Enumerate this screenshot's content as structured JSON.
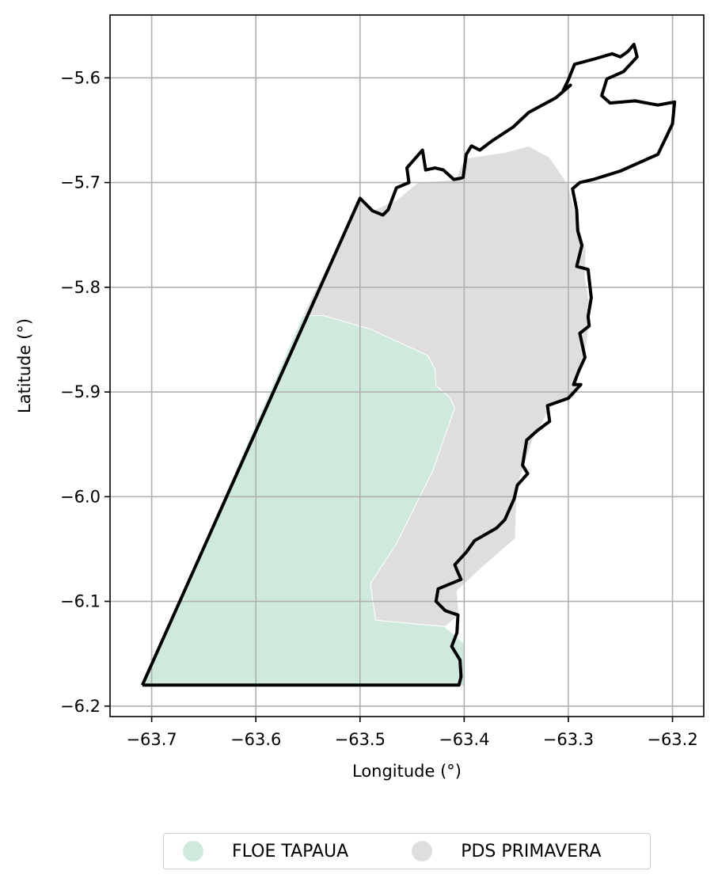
{
  "chart_data": {
    "type": "map",
    "xlabel": "Longitude (°)",
    "ylabel": "Latitude (°)",
    "xlim": [
      -63.74,
      -63.17
    ],
    "ylim": [
      -6.21,
      -5.54
    ],
    "grid": true,
    "x_ticks": [
      -63.7,
      -63.6,
      -63.5,
      -63.4,
      -63.3,
      -63.2
    ],
    "y_ticks": [
      -5.6,
      -5.7,
      -5.8,
      -5.9,
      -6.0,
      -6.1,
      -6.2
    ],
    "x_tick_labels": [
      "−63.7",
      "−63.6",
      "−63.5",
      "−63.4",
      "−63.3",
      "−63.2"
    ],
    "y_tick_labels": [
      "−5.6",
      "−5.7",
      "−5.8",
      "−5.9",
      "−6.0",
      "−6.1",
      "−6.2"
    ],
    "legend_position": "bottom-center",
    "series": [
      {
        "name": "FLOE TAPAUA",
        "color": "#cfeadd",
        "polygon": [
          [
            -63.709,
            -6.18
          ],
          [
            -63.555,
            -5.827
          ],
          [
            -63.535,
            -5.827
          ],
          [
            -63.49,
            -5.84
          ],
          [
            -63.435,
            -5.865
          ],
          [
            -63.428,
            -5.878
          ],
          [
            -63.427,
            -5.894
          ],
          [
            -63.414,
            -5.905
          ],
          [
            -63.409,
            -5.915
          ],
          [
            -63.43,
            -5.975
          ],
          [
            -63.465,
            -6.045
          ],
          [
            -63.49,
            -6.083
          ],
          [
            -63.485,
            -6.118
          ],
          [
            -63.42,
            -6.123
          ],
          [
            -63.4,
            -6.14
          ],
          [
            -63.4,
            -6.181
          ]
        ]
      },
      {
        "name": "PDS PRIMAVERA",
        "color": "#dedede",
        "polygon": [
          [
            -63.555,
            -5.827
          ],
          [
            -63.5,
            -5.717
          ],
          [
            -63.488,
            -5.727
          ],
          [
            -63.473,
            -5.72
          ],
          [
            -63.465,
            -5.717
          ],
          [
            -63.445,
            -5.7
          ],
          [
            -63.408,
            -5.697
          ],
          [
            -63.4,
            -5.677
          ],
          [
            -63.36,
            -5.671
          ],
          [
            -63.338,
            -5.665
          ],
          [
            -63.318,
            -5.676
          ],
          [
            -63.305,
            -5.695
          ],
          [
            -63.3,
            -5.702
          ],
          [
            -63.293,
            -5.73
          ],
          [
            -63.283,
            -5.765
          ],
          [
            -63.284,
            -5.79
          ],
          [
            -63.279,
            -5.82
          ],
          [
            -63.282,
            -5.852
          ],
          [
            -63.29,
            -5.885
          ],
          [
            -63.294,
            -5.905
          ],
          [
            -63.316,
            -5.913
          ],
          [
            -63.334,
            -5.945
          ],
          [
            -63.349,
            -5.99
          ],
          [
            -63.351,
            -6.04
          ],
          [
            -63.38,
            -6.065
          ],
          [
            -63.407,
            -6.09
          ],
          [
            -63.405,
            -6.113
          ],
          [
            -63.418,
            -6.124
          ],
          [
            -63.485,
            -6.118
          ],
          [
            -63.49,
            -6.083
          ],
          [
            -63.465,
            -6.045
          ],
          [
            -63.43,
            -5.975
          ],
          [
            -63.409,
            -5.915
          ],
          [
            -63.414,
            -5.905
          ],
          [
            -63.427,
            -5.894
          ],
          [
            -63.428,
            -5.878
          ],
          [
            -63.435,
            -5.865
          ],
          [
            -63.49,
            -5.84
          ],
          [
            -63.535,
            -5.827
          ]
        ]
      }
    ],
    "boundary": [
      [
        -63.709,
        -6.18
      ],
      [
        -63.5,
        -5.715
      ],
      [
        -63.488,
        -5.727
      ],
      [
        -63.478,
        -5.731
      ],
      [
        -63.473,
        -5.726
      ],
      [
        -63.465,
        -5.705
      ],
      [
        -63.453,
        -5.7
      ],
      [
        -63.455,
        -5.686
      ],
      [
        -63.44,
        -5.669
      ],
      [
        -63.437,
        -5.688
      ],
      [
        -63.428,
        -5.686
      ],
      [
        -63.42,
        -5.688
      ],
      [
        -63.41,
        -5.697
      ],
      [
        -63.404,
        -5.696
      ],
      [
        -63.401,
        -5.695
      ],
      [
        -63.398,
        -5.673
      ],
      [
        -63.393,
        -5.665
      ],
      [
        -63.385,
        -5.669
      ],
      [
        -63.373,
        -5.66
      ],
      [
        -63.353,
        -5.647
      ],
      [
        -63.338,
        -5.633
      ],
      [
        -63.312,
        -5.619
      ],
      [
        -63.298,
        -5.607
      ],
      [
        -63.305,
        -5.612
      ],
      [
        -63.3,
        -5.602
      ],
      [
        -63.294,
        -5.587
      ],
      [
        -63.275,
        -5.582
      ],
      [
        -63.258,
        -5.577
      ],
      [
        -63.25,
        -5.58
      ],
      [
        -63.243,
        -5.575
      ],
      [
        -63.237,
        -5.568
      ],
      [
        -63.234,
        -5.58
      ],
      [
        -63.247,
        -5.594
      ],
      [
        -63.263,
        -5.601
      ],
      [
        -63.268,
        -5.617
      ],
      [
        -63.26,
        -5.624
      ],
      [
        -63.236,
        -5.622
      ],
      [
        -63.214,
        -5.626
      ],
      [
        -63.198,
        -5.623
      ],
      [
        -63.2,
        -5.644
      ],
      [
        -63.214,
        -5.673
      ],
      [
        -63.25,
        -5.689
      ],
      [
        -63.276,
        -5.697
      ],
      [
        -63.289,
        -5.7
      ],
      [
        -63.296,
        -5.706
      ],
      [
        -63.292,
        -5.726
      ],
      [
        -63.291,
        -5.746
      ],
      [
        -63.287,
        -5.76
      ],
      [
        -63.292,
        -5.78
      ],
      [
        -63.281,
        -5.783
      ],
      [
        -63.278,
        -5.81
      ],
      [
        -63.281,
        -5.828
      ],
      [
        -63.28,
        -5.837
      ],
      [
        -63.289,
        -5.844
      ],
      [
        -63.284,
        -5.867
      ],
      [
        -63.29,
        -5.88
      ],
      [
        -63.295,
        -5.893
      ],
      [
        -63.288,
        -5.893
      ],
      [
        -63.3,
        -5.906
      ],
      [
        -63.32,
        -5.913
      ],
      [
        -63.318,
        -5.928
      ],
      [
        -63.33,
        -5.937
      ],
      [
        -63.34,
        -5.946
      ],
      [
        -63.344,
        -5.97
      ],
      [
        -63.339,
        -5.978
      ],
      [
        -63.349,
        -5.989
      ],
      [
        -63.352,
        -6.002
      ],
      [
        -63.361,
        -6.022
      ],
      [
        -63.369,
        -6.03
      ],
      [
        -63.39,
        -6.042
      ],
      [
        -63.398,
        -6.053
      ],
      [
        -63.409,
        -6.065
      ],
      [
        -63.407,
        -6.07
      ],
      [
        -63.403,
        -6.079
      ],
      [
        -63.425,
        -6.088
      ],
      [
        -63.427,
        -6.1
      ],
      [
        -63.418,
        -6.109
      ],
      [
        -63.406,
        -6.113
      ],
      [
        -63.407,
        -6.13
      ],
      [
        -63.412,
        -6.143
      ],
      [
        -63.404,
        -6.156
      ],
      [
        -63.403,
        -6.172
      ],
      [
        -63.405,
        -6.18
      ],
      [
        -63.709,
        -6.18
      ]
    ]
  },
  "legend": [
    {
      "label": "FLOE TAPAUA",
      "color": "#cfeadd"
    },
    {
      "label": "PDS PRIMAVERA",
      "color": "#dedede"
    }
  ]
}
